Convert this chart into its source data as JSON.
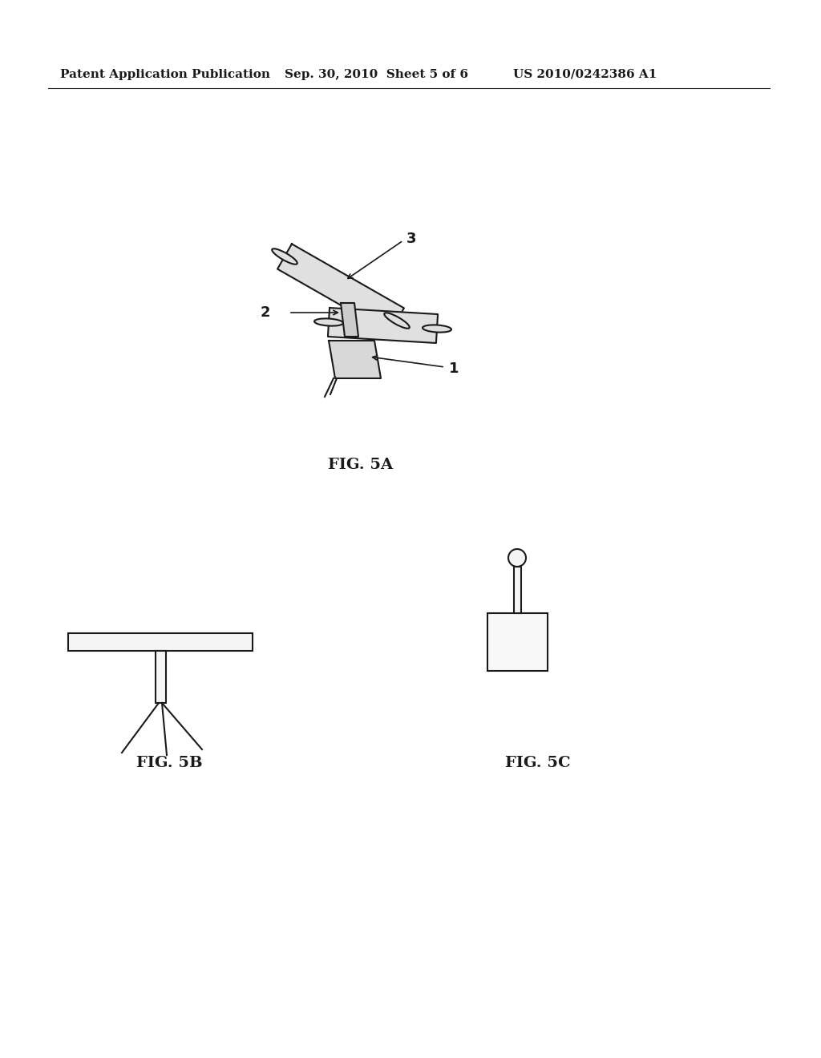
{
  "background_color": "#ffffff",
  "header_left": "Patent Application Publication",
  "header_mid": "Sep. 30, 2010  Sheet 5 of 6",
  "header_right": "US 2010/0242386 A1",
  "header_fontsize": 11,
  "fig5a_label": "FIG. 5A",
  "fig5b_label": "FIG. 5B",
  "fig5c_label": "FIG. 5C",
  "label_fontsize": 14,
  "ref_fontsize": 13,
  "line_color": "#1a1a1a",
  "line_width": 1.5
}
